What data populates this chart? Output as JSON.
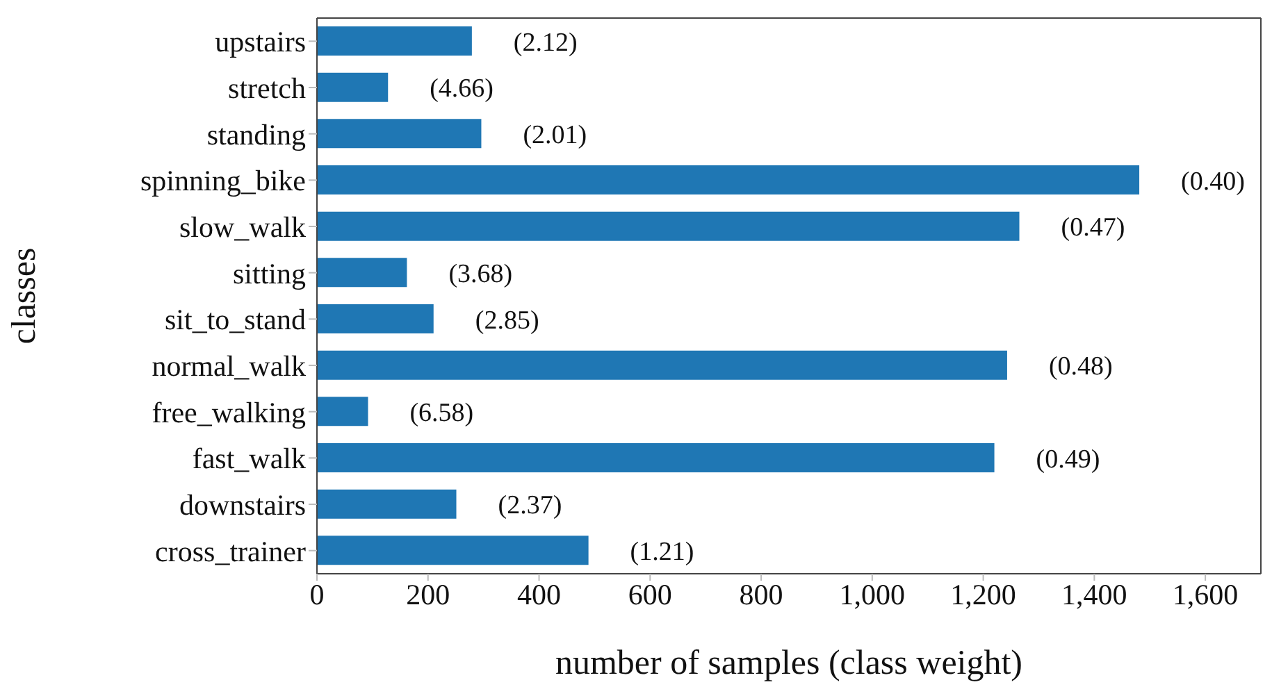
{
  "chart_data": {
    "type": "bar",
    "orientation": "horizontal",
    "xlabel": "number of samples (class weight)",
    "ylabel": "classes",
    "categories": [
      "upstairs",
      "stretch",
      "standing",
      "spinning_bike",
      "slow_walk",
      "sitting",
      "sit_to_stand",
      "normal_walk",
      "free_walking",
      "fast_walk",
      "downstairs",
      "cross_trainer"
    ],
    "values": [
      279,
      128,
      296,
      1481,
      1265,
      162,
      210,
      1243,
      92,
      1220,
      251,
      489
    ],
    "annotations": [
      {
        "text": "(2.12)",
        "x": 279,
        "y": "upstairs"
      },
      {
        "text": "(4.66)",
        "x": 128,
        "y": "stretch"
      },
      {
        "text": "(2.01)",
        "x": 296,
        "y": "standing"
      },
      {
        "text": "(0.40)",
        "x": 1481,
        "y": "spinning_bike"
      },
      {
        "text": "(0.47)",
        "x": 1265,
        "y": "slow_walk"
      },
      {
        "text": "(3.68)",
        "x": 162,
        "y": "sitting"
      },
      {
        "text": "(2.85)",
        "x": 210,
        "y": "sit_to_stand"
      },
      {
        "text": "(0.48)",
        "x": 1243,
        "y": "normal_walk"
      },
      {
        "text": "(6.58)",
        "x": 92,
        "y": "free_walking"
      },
      {
        "text": "(0.49)",
        "x": 1220,
        "y": "fast_walk"
      },
      {
        "text": "(2.37)",
        "x": 251,
        "y": "downstairs"
      },
      {
        "text": "(1.21)",
        "x": 489,
        "y": "cross_trainer"
      }
    ],
    "color": "#1f77b4",
    "xlim": [
      0,
      1700
    ],
    "xticks": [
      0,
      {
        "value": 200,
        "label": "200"
      },
      {
        "value": 400,
        "label": "400"
      },
      {
        "value": 600,
        "label": "600"
      },
      {
        "value": 800,
        "label": "800"
      },
      {
        "value": 1000,
        "label": "1,000"
      },
      {
        "value": 1200,
        "label": "1,200"
      },
      {
        "value": 1400,
        "label": "1,400"
      },
      {
        "value": 1600,
        "label": "1,600"
      }
    ],
    "grid": false,
    "legend": false
  }
}
